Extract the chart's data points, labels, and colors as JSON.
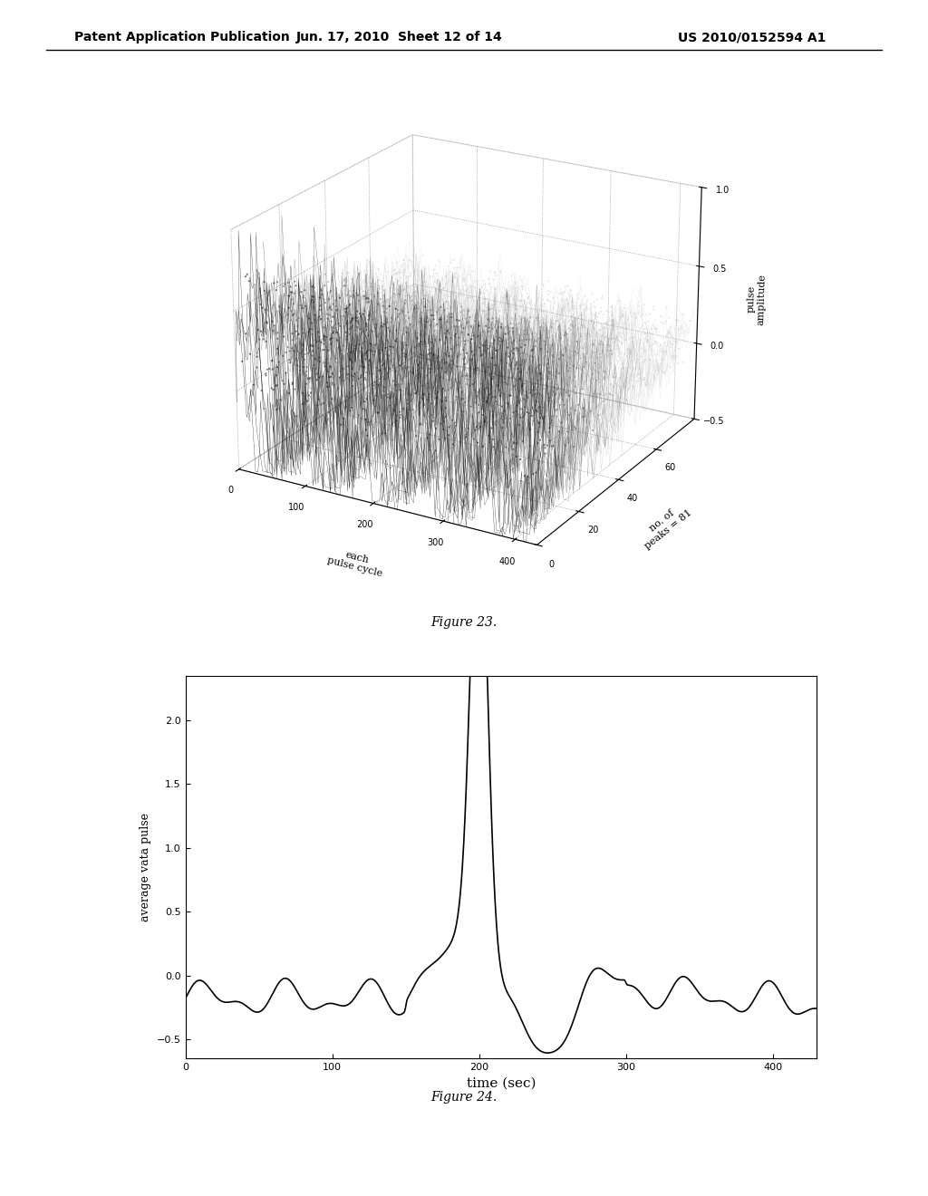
{
  "header_left": "Patent Application Publication",
  "header_mid": "Jun. 17, 2010  Sheet 12 of 14",
  "header_right": "US 2010/0152594 A1",
  "fig23_caption": "Figure 23.",
  "fig24_caption": "Figure 24.",
  "fig23": {
    "xlabel": "each\npulse cycle",
    "ylabel": "no. of\npeaks = 81",
    "zlabel": "pulse\namplitude",
    "xlim": [
      0,
      430
    ],
    "ylim": [
      0,
      81
    ],
    "zlim": [
      -0.5,
      1.0
    ],
    "xticks": [
      0,
      100,
      200,
      300,
      400
    ],
    "yticks": [
      0,
      20,
      40,
      60
    ],
    "zticks": [
      -0.5,
      0,
      0.5,
      1.0
    ],
    "elev": 22,
    "azim": -60
  },
  "fig24": {
    "xlabel": "time (sec)",
    "ylabel": "average vata pulse",
    "xlim": [
      0,
      430
    ],
    "ylim": [
      -0.65,
      2.35
    ],
    "xticks": [
      0,
      100,
      200,
      300,
      400
    ],
    "yticks": [
      -0.5,
      0,
      0.5,
      1.0,
      1.5,
      2.0
    ],
    "line_color": "#000000",
    "line_width": 1.2
  },
  "background_color": "#ffffff",
  "text_color": "#000000"
}
